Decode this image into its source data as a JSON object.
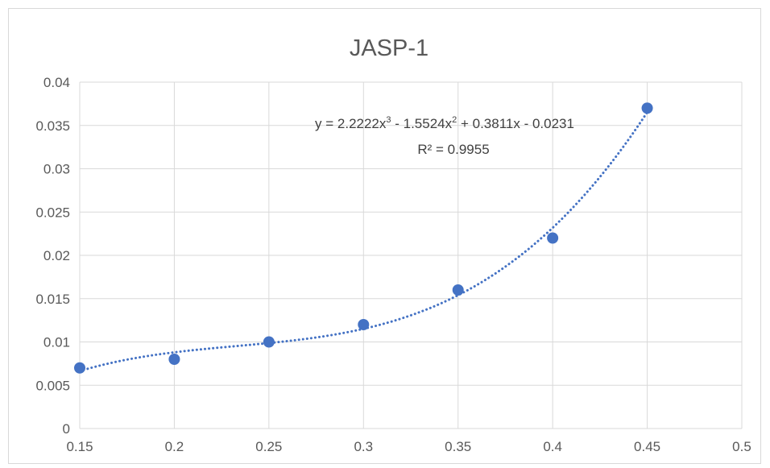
{
  "chart_data": {
    "type": "scatter",
    "title": "JASP-1",
    "xlabel": "",
    "ylabel": "",
    "xlim": [
      0.15,
      0.5
    ],
    "ylim": [
      0,
      0.04
    ],
    "x_ticks": [
      0.15,
      0.2,
      0.25,
      0.3,
      0.35,
      0.4,
      0.45,
      0.5
    ],
    "y_ticks": [
      0,
      0.005,
      0.01,
      0.015,
      0.02,
      0.025,
      0.03,
      0.035,
      0.04
    ],
    "x_tick_labels": [
      "0.15",
      "0.2",
      "0.25",
      "0.3",
      "0.35",
      "0.4",
      "0.45",
      "0.5"
    ],
    "y_tick_labels": [
      "0",
      "0.005",
      "0.01",
      "0.015",
      "0.02",
      "0.025",
      "0.03",
      "0.035",
      "0.04"
    ],
    "grid": true,
    "legend": "none",
    "series": [
      {
        "x": [
          0.15,
          0.2,
          0.25,
          0.3,
          0.35,
          0.4,
          0.45
        ],
        "y": [
          0.007,
          0.008,
          0.01,
          0.012,
          0.016,
          0.022,
          0.037
        ],
        "color": "#4472c4"
      }
    ],
    "trendline": {
      "type": "polynomial",
      "order": 3,
      "style": "dotted",
      "color": "#4472c4",
      "coefficients": [
        2.2222,
        -1.5524,
        0.3811,
        -0.0231
      ],
      "x_range": [
        0.15,
        0.45
      ],
      "equation_parts": {
        "prefix": "y = 2.2222x",
        "exp1": "3",
        "mid": " - 1.5524x",
        "exp2": "2",
        "suffix": " + 0.3811x - 0.0231"
      },
      "r_squared_text": "R² = 0.9955"
    },
    "colors": {
      "marker": "#4472c4",
      "gridline": "#d9d9d9",
      "axis_text": "#595959"
    }
  }
}
